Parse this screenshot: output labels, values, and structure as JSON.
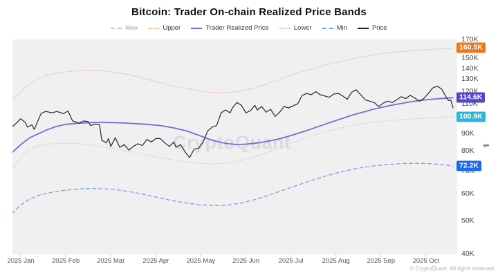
{
  "title": "Bitcoin: Trader On-chain Realized Price Bands",
  "watermark": "CryptoQuant",
  "footer": "© CryptoQuant. All rights reserved",
  "y_axis": {
    "unit_label": "$",
    "scale": "log",
    "tick_labels": [
      "170K",
      "150K",
      "140K",
      "130K",
      "120K",
      "110K",
      "90K",
      "80K",
      "70K",
      "60K",
      "50K",
      "40K"
    ],
    "tick_values": [
      170,
      150,
      140,
      130,
      120,
      110,
      90,
      80,
      70,
      60,
      50,
      40
    ]
  },
  "x_axis": {
    "tick_labels": [
      "2025 Jan",
      "2025 Feb",
      "2025 Mar",
      "2025 Apr",
      "2025 May",
      "2025 Jun",
      "2025 Jul",
      "2025 Aug",
      "2025 Sep",
      "2025 Oct"
    ]
  },
  "badges": [
    {
      "label": "160.5K",
      "value": 160.5,
      "color": "#e8791d",
      "series": "Upper"
    },
    {
      "label": "114.6K",
      "value": 114.6,
      "color": "#5746cb",
      "series": "Trader Realized Price"
    },
    {
      "label": "100.9K",
      "value": 100.9,
      "color": "#2cb5da",
      "series": "Lower"
    },
    {
      "label": "72.2K",
      "value": 72.2,
      "color": "#1a6ae8",
      "series": "Min"
    }
  ],
  "legend": [
    {
      "label": "Max",
      "style": "dashed",
      "color": "#c9c9cd",
      "disabled": true
    },
    {
      "label": "Upper",
      "style": "dotted",
      "color": "#f0b18e",
      "disabled": false
    },
    {
      "label": "Trader Realized Price",
      "style": "solid",
      "color": "#7a66dd",
      "disabled": false
    },
    {
      "label": "Lower",
      "style": "dotted",
      "color": "#a8ddd4",
      "disabled": false
    },
    {
      "label": "Min",
      "style": "dashed",
      "color": "#7a9ff0",
      "disabled": false
    },
    {
      "label": "Price",
      "style": "solid",
      "color": "#26262b",
      "disabled": false
    }
  ],
  "chart_data": {
    "type": "line",
    "title": "Bitcoin: Trader On-chain Realized Price Bands",
    "x_unit": "months since 2025-01-01",
    "y_unit": "thousand USD",
    "y_scale": "log",
    "ylim": [
      40,
      170
    ],
    "x_tick_labels": [
      "2025 Jan",
      "2025 Feb",
      "2025 Mar",
      "2025 Apr",
      "2025 May",
      "2025 Jun",
      "2025 Jul",
      "2025 Aug",
      "2025 Sep",
      "2025 Oct"
    ],
    "grid": false,
    "legend_position": "top",
    "series": [
      {
        "name": "Upper",
        "style": "dotted",
        "color": "#f0b18e",
        "width": 1.4,
        "last_value": 160.5,
        "points": [
          [
            -0.2,
            112
          ],
          [
            0,
            119
          ],
          [
            0.2,
            126
          ],
          [
            0.4,
            130.5
          ],
          [
            0.6,
            133.5
          ],
          [
            0.9,
            136
          ],
          [
            1.2,
            137.5
          ],
          [
            1.5,
            138
          ],
          [
            1.8,
            137.5
          ],
          [
            2.1,
            136
          ],
          [
            2.4,
            134
          ],
          [
            2.7,
            131
          ],
          [
            3.0,
            128
          ],
          [
            3.3,
            125
          ],
          [
            3.6,
            122.5
          ],
          [
            3.9,
            120.5
          ],
          [
            4.2,
            119
          ],
          [
            4.5,
            118.5
          ],
          [
            4.8,
            119.5
          ],
          [
            5.1,
            121.5
          ],
          [
            5.4,
            125
          ],
          [
            5.7,
            129
          ],
          [
            6.0,
            133.5
          ],
          [
            6.3,
            137.5
          ],
          [
            6.6,
            141
          ],
          [
            6.9,
            144.5
          ],
          [
            7.2,
            147.5
          ],
          [
            7.5,
            150.5
          ],
          [
            7.8,
            153
          ],
          [
            8.1,
            155
          ],
          [
            8.4,
            156.5
          ],
          [
            8.7,
            157.5
          ],
          [
            9.0,
            158.5
          ],
          [
            9.3,
            159.5
          ],
          [
            9.6,
            160.5
          ]
        ]
      },
      {
        "name": "Trader Realized Price",
        "style": "solid",
        "color": "#7a66dd",
        "width": 1.8,
        "last_value": 114.6,
        "points": [
          [
            -0.2,
            79
          ],
          [
            0,
            83.5
          ],
          [
            0.2,
            87.5
          ],
          [
            0.4,
            90
          ],
          [
            0.6,
            92.5
          ],
          [
            0.8,
            94.5
          ],
          [
            1.0,
            95.8
          ],
          [
            1.3,
            96.5
          ],
          [
            1.6,
            97
          ],
          [
            1.9,
            97
          ],
          [
            2.2,
            96.8
          ],
          [
            2.5,
            96.3
          ],
          [
            2.8,
            95.8
          ],
          [
            3.1,
            95
          ],
          [
            3.4,
            93.5
          ],
          [
            3.7,
            91.5
          ],
          [
            4.0,
            88.5
          ],
          [
            4.2,
            86.5
          ],
          [
            4.4,
            85
          ],
          [
            4.6,
            84
          ],
          [
            4.8,
            83.6
          ],
          [
            5.0,
            83.8
          ],
          [
            5.2,
            84.3
          ],
          [
            5.4,
            85
          ],
          [
            5.6,
            86
          ],
          [
            5.8,
            87.3
          ],
          [
            6.0,
            88.8
          ],
          [
            6.2,
            90.5
          ],
          [
            6.4,
            92.3
          ],
          [
            6.6,
            94.3
          ],
          [
            6.8,
            96.3
          ],
          [
            7.0,
            98.3
          ],
          [
            7.2,
            100.3
          ],
          [
            7.4,
            102.3
          ],
          [
            7.6,
            104
          ],
          [
            7.8,
            105.8
          ],
          [
            8.0,
            107.3
          ],
          [
            8.2,
            108.8
          ],
          [
            8.4,
            110
          ],
          [
            8.6,
            111.2
          ],
          [
            8.8,
            112.2
          ],
          [
            9.0,
            113
          ],
          [
            9.2,
            113.7
          ],
          [
            9.4,
            114.2
          ],
          [
            9.6,
            114.6
          ]
        ]
      },
      {
        "name": "Lower",
        "style": "dotted",
        "color": "#a8ddd4",
        "width": 1.4,
        "last_value": 100.9,
        "points": [
          [
            -0.2,
            70.5
          ],
          [
            0,
            77
          ],
          [
            0.2,
            81
          ],
          [
            0.4,
            83
          ],
          [
            0.7,
            84
          ],
          [
            1.0,
            84.2
          ],
          [
            1.3,
            84
          ],
          [
            1.6,
            83.2
          ],
          [
            1.9,
            82
          ],
          [
            2.2,
            80.7
          ],
          [
            2.5,
            79.3
          ],
          [
            2.8,
            77.8
          ],
          [
            3.1,
            76.4
          ],
          [
            3.4,
            75.2
          ],
          [
            3.7,
            74.2
          ],
          [
            4.0,
            73.6
          ],
          [
            4.3,
            73.3
          ],
          [
            4.6,
            73.8
          ],
          [
            4.9,
            75
          ],
          [
            5.2,
            77
          ],
          [
            5.5,
            79.5
          ],
          [
            5.8,
            82.3
          ],
          [
            6.1,
            85.2
          ],
          [
            6.4,
            88
          ],
          [
            6.7,
            90.6
          ],
          [
            7.0,
            92.8
          ],
          [
            7.3,
            94.7
          ],
          [
            7.6,
            96.2
          ],
          [
            7.9,
            97.4
          ],
          [
            8.2,
            98.3
          ],
          [
            8.5,
            99
          ],
          [
            8.8,
            99.6
          ],
          [
            9.1,
            100.1
          ],
          [
            9.4,
            100.6
          ],
          [
            9.6,
            100.9
          ]
        ]
      },
      {
        "name": "Min",
        "style": "dashed",
        "color": "#7a9ff0",
        "width": 1.3,
        "last_value": 72.2,
        "points": [
          [
            -0.2,
            52.5
          ],
          [
            0,
            55.5
          ],
          [
            0.2,
            57.8
          ],
          [
            0.4,
            59.3
          ],
          [
            0.7,
            60.6
          ],
          [
            1.0,
            61.4
          ],
          [
            1.3,
            61.9
          ],
          [
            1.6,
            62.1
          ],
          [
            1.9,
            61.9
          ],
          [
            2.2,
            61.4
          ],
          [
            2.5,
            60.5
          ],
          [
            2.8,
            59.4
          ],
          [
            3.1,
            58.2
          ],
          [
            3.4,
            57.1
          ],
          [
            3.7,
            56.2
          ],
          [
            4.0,
            55.6
          ],
          [
            4.3,
            55.3
          ],
          [
            4.6,
            55.5
          ],
          [
            4.9,
            56.3
          ],
          [
            5.2,
            57.6
          ],
          [
            5.5,
            59.3
          ],
          [
            5.8,
            61.2
          ],
          [
            6.1,
            63.2
          ],
          [
            6.4,
            65.2
          ],
          [
            6.7,
            67.1
          ],
          [
            7.0,
            68.9
          ],
          [
            7.3,
            70.4
          ],
          [
            7.6,
            71.6
          ],
          [
            7.9,
            72.5
          ],
          [
            8.2,
            73.1
          ],
          [
            8.5,
            73.5
          ],
          [
            8.8,
            73.6
          ],
          [
            9.1,
            73.4
          ],
          [
            9.4,
            72.9
          ],
          [
            9.6,
            72.2
          ]
        ]
      },
      {
        "name": "Price",
        "style": "solid",
        "color": "#26262b",
        "width": 1.2,
        "last_value": 107,
        "points": [
          [
            -0.2,
            94
          ],
          [
            -0.1,
            96.5
          ],
          [
            0.0,
            99.5
          ],
          [
            0.1,
            97
          ],
          [
            0.15,
            94
          ],
          [
            0.25,
            95.5
          ],
          [
            0.3,
            92.5
          ],
          [
            0.45,
            103
          ],
          [
            0.55,
            104.5
          ],
          [
            0.7,
            103.5
          ],
          [
            0.8,
            104.5
          ],
          [
            0.95,
            103
          ],
          [
            1.05,
            104.8
          ],
          [
            1.15,
            98
          ],
          [
            1.3,
            96.5
          ],
          [
            1.4,
            98
          ],
          [
            1.5,
            97.5
          ],
          [
            1.55,
            95
          ],
          [
            1.65,
            96
          ],
          [
            1.75,
            95.5
          ],
          [
            1.8,
            86
          ],
          [
            1.9,
            84.5
          ],
          [
            1.95,
            87
          ],
          [
            2.0,
            82.5
          ],
          [
            2.1,
            87.5
          ],
          [
            2.2,
            82
          ],
          [
            2.3,
            83.5
          ],
          [
            2.4,
            80.5
          ],
          [
            2.5,
            82.5
          ],
          [
            2.6,
            84
          ],
          [
            2.7,
            83
          ],
          [
            2.8,
            86.5
          ],
          [
            2.9,
            85
          ],
          [
            3.0,
            87
          ],
          [
            3.1,
            87
          ],
          [
            3.2,
            84.5
          ],
          [
            3.3,
            82.5
          ],
          [
            3.4,
            85
          ],
          [
            3.45,
            82
          ],
          [
            3.55,
            83.5
          ],
          [
            3.65,
            79.5
          ],
          [
            3.75,
            76.5
          ],
          [
            3.85,
            81
          ],
          [
            3.95,
            81.5
          ],
          [
            4.05,
            85
          ],
          [
            4.15,
            91.5
          ],
          [
            4.25,
            94
          ],
          [
            4.35,
            95
          ],
          [
            4.45,
            103.5
          ],
          [
            4.55,
            105.5
          ],
          [
            4.65,
            103.5
          ],
          [
            4.7,
            107
          ],
          [
            4.8,
            111
          ],
          [
            4.9,
            109
          ],
          [
            5.0,
            103.5
          ],
          [
            5.1,
            105
          ],
          [
            5.2,
            109
          ],
          [
            5.25,
            105.5
          ],
          [
            5.35,
            108
          ],
          [
            5.45,
            104
          ],
          [
            5.55,
            106
          ],
          [
            5.65,
            101
          ],
          [
            5.75,
            104
          ],
          [
            5.85,
            108
          ],
          [
            5.95,
            107
          ],
          [
            6.05,
            108.5
          ],
          [
            6.15,
            110
          ],
          [
            6.25,
            116.5
          ],
          [
            6.35,
            118
          ],
          [
            6.45,
            117
          ],
          [
            6.55,
            119.5
          ],
          [
            6.65,
            117
          ],
          [
            6.75,
            116
          ],
          [
            6.85,
            115
          ],
          [
            6.95,
            117.5
          ],
          [
            7.05,
            118
          ],
          [
            7.15,
            116
          ],
          [
            7.25,
            113.5
          ],
          [
            7.35,
            119
          ],
          [
            7.45,
            121
          ],
          [
            7.55,
            117
          ],
          [
            7.65,
            113
          ],
          [
            7.75,
            112
          ],
          [
            7.85,
            111
          ],
          [
            7.95,
            108
          ],
          [
            8.05,
            110.5
          ],
          [
            8.15,
            112
          ],
          [
            8.25,
            111
          ],
          [
            8.35,
            113
          ],
          [
            8.45,
            115.5
          ],
          [
            8.55,
            114
          ],
          [
            8.65,
            116.5
          ],
          [
            8.75,
            114.5
          ],
          [
            8.85,
            112
          ],
          [
            8.95,
            114
          ],
          [
            9.05,
            118
          ],
          [
            9.15,
            122.5
          ],
          [
            9.25,
            124
          ],
          [
            9.35,
            121.5
          ],
          [
            9.45,
            115
          ],
          [
            9.5,
            112.5
          ],
          [
            9.55,
            113
          ],
          [
            9.6,
            107
          ]
        ]
      },
      {
        "name": "Max",
        "style": "dashed",
        "color": "#c9c9cd",
        "width": 1.3,
        "hidden": true,
        "points": []
      }
    ]
  }
}
